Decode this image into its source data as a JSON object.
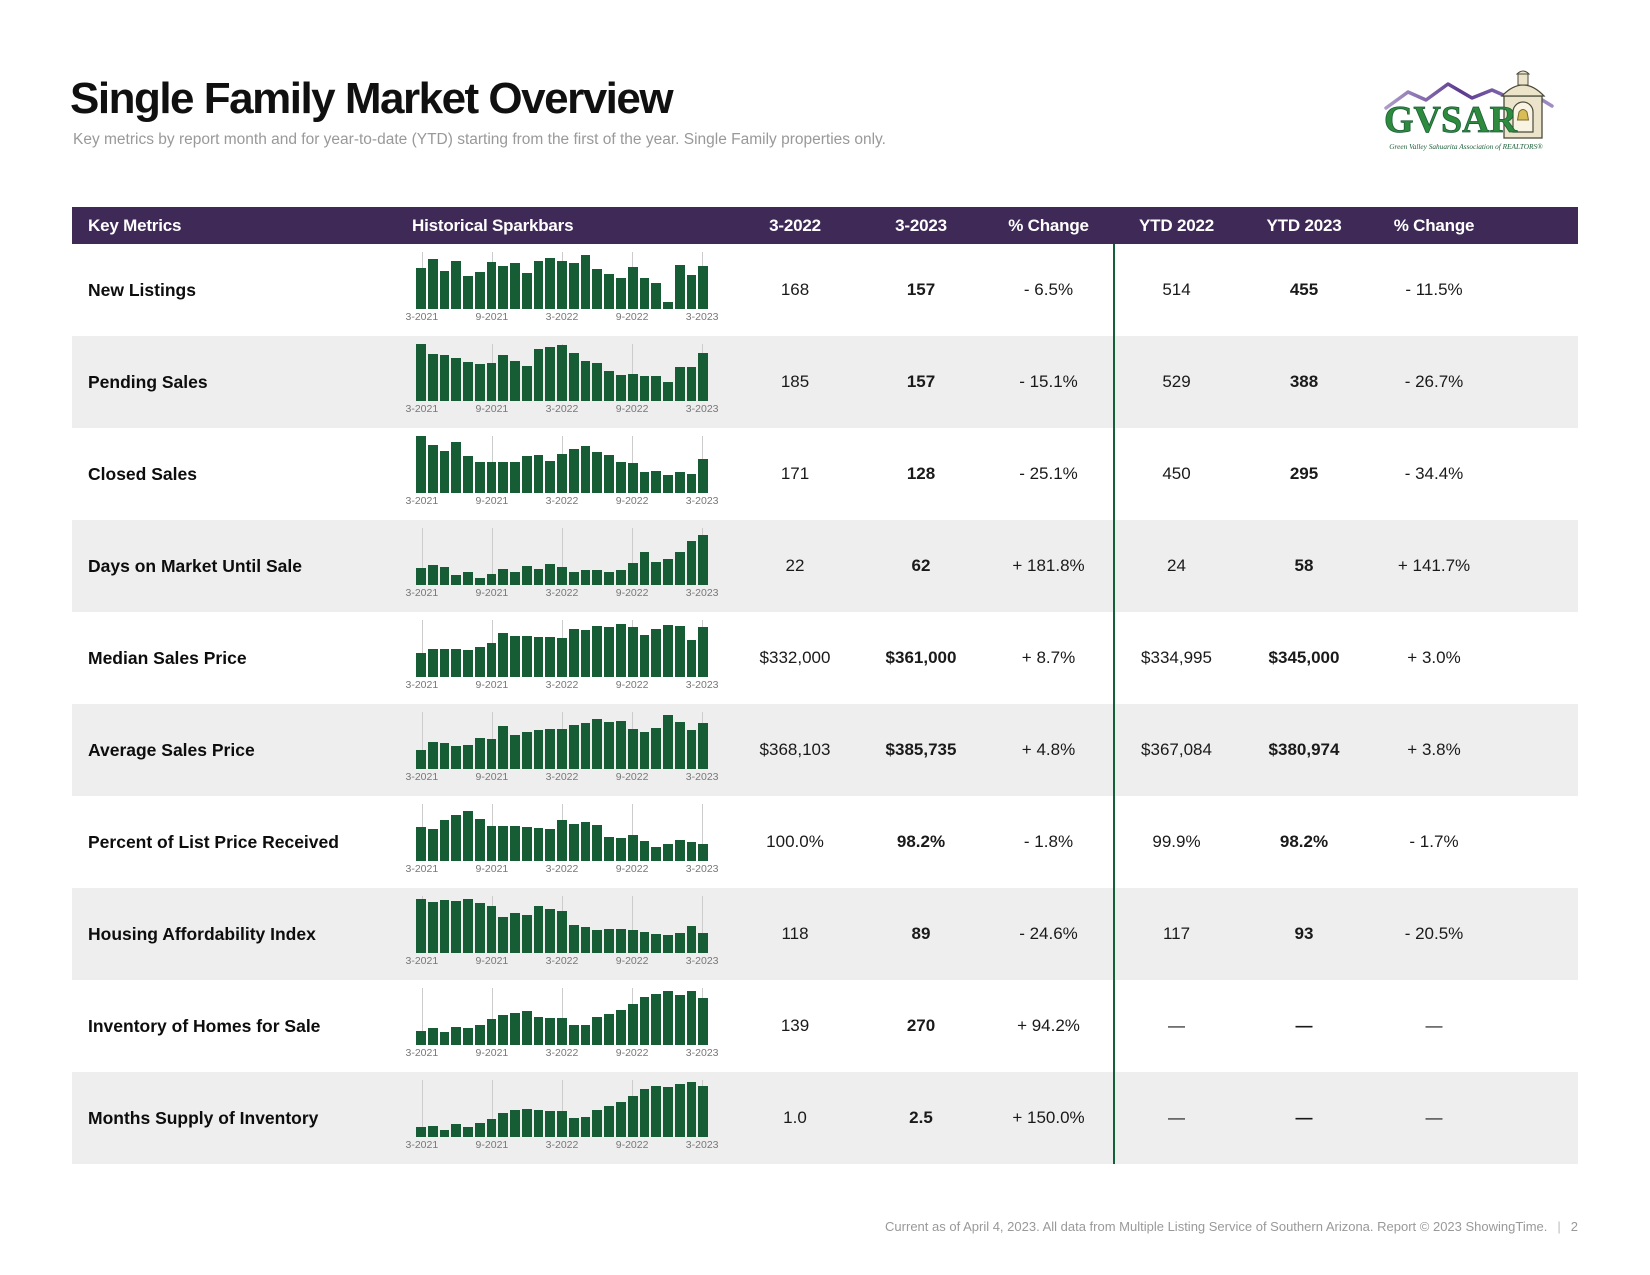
{
  "page": {
    "title": "Single Family Market Overview",
    "subtitle": "Key metrics by report month and for year-to-date (YTD) starting from the first of the year. Single Family properties only.",
    "footer": "Current as of April 4, 2023. All data from Multiple Listing Service of Southern Arizona. Report © 2023 ShowingTime.",
    "footer_separator": "|",
    "page_number": "2"
  },
  "logo": {
    "name": "GVSAR",
    "tagline": "Green Valley Sahuarita Association of REALTORS®",
    "green": "#2e8b3d",
    "purple": "#6b4a9e",
    "tower_fill": "#ece4ca"
  },
  "theme": {
    "header_bg": "#3f2957",
    "bar_green": "#165c35",
    "divider_green": "#15603a",
    "alt_row_bg": "#eeeeee",
    "gridline": "#cccccc",
    "tick": "#777777",
    "muted": "#999999"
  },
  "table": {
    "headers": [
      "Key Metrics",
      "Historical Sparkbars",
      "3-2022",
      "3-2023",
      "% Change",
      "YTD 2022",
      "YTD 2023",
      "% Change"
    ],
    "tick_labels": [
      "3-2021",
      "9-2021",
      "3-2022",
      "9-2022",
      "3-2023"
    ],
    "tick_indices": [
      0,
      6,
      12,
      18,
      24
    ],
    "rows": [
      {
        "label": "New Listings",
        "m2022": "168",
        "m2023": "157",
        "pct": "- 6.5%",
        "ytd2022": "514",
        "ytd2023": "455",
        "ytdpct": "- 11.5%"
      },
      {
        "label": "Pending Sales",
        "m2022": "185",
        "m2023": "157",
        "pct": "- 15.1%",
        "ytd2022": "529",
        "ytd2023": "388",
        "ytdpct": "- 26.7%"
      },
      {
        "label": "Closed Sales",
        "m2022": "171",
        "m2023": "128",
        "pct": "- 25.1%",
        "ytd2022": "450",
        "ytd2023": "295",
        "ytdpct": "- 34.4%"
      },
      {
        "label": "Days on Market Until Sale",
        "m2022": "22",
        "m2023": "62",
        "pct": "+ 181.8%",
        "ytd2022": "24",
        "ytd2023": "58",
        "ytdpct": "+ 141.7%"
      },
      {
        "label": "Median Sales Price",
        "m2022": "$332,000",
        "m2023": "$361,000",
        "pct": "+ 8.7%",
        "ytd2022": "$334,995",
        "ytd2023": "$345,000",
        "ytdpct": "+ 3.0%"
      },
      {
        "label": "Average Sales Price",
        "m2022": "$368,103",
        "m2023": "$385,735",
        "pct": "+ 4.8%",
        "ytd2022": "$367,084",
        "ytd2023": "$380,974",
        "ytdpct": "+ 3.8%"
      },
      {
        "label": "Percent of List Price Received",
        "m2022": "100.0%",
        "m2023": "98.2%",
        "pct": "- 1.8%",
        "ytd2022": "99.9%",
        "ytd2023": "98.2%",
        "ytdpct": "- 1.7%"
      },
      {
        "label": "Housing Affordability Index",
        "m2022": "118",
        "m2023": "89",
        "pct": "- 24.6%",
        "ytd2022": "117",
        "ytd2023": "93",
        "ytdpct": "- 20.5%"
      },
      {
        "label": "Inventory of Homes for Sale",
        "m2022": "139",
        "m2023": "270",
        "pct": "+ 94.2%",
        "ytd2022": "—",
        "ytd2023": "—",
        "ytdpct": "—"
      },
      {
        "label": "Months Supply of Inventory",
        "m2022": "1.0",
        "m2023": "2.5",
        "pct": "+ 150.0%",
        "ytd2022": "—",
        "ytd2023": "—",
        "ytdpct": "—"
      }
    ]
  },
  "chart_data": {
    "type": "bar",
    "title": "Historical Sparkbars (monthly, 3-2021 through 3-2023, 25 bars each)",
    "x_tick_labels": [
      "3-2021",
      "9-2021",
      "3-2022",
      "9-2022",
      "3-2023"
    ],
    "ylabel": "relative bar height, % of sparkbar max (estimated from pixels)",
    "legend_position": "none",
    "grid": "vertical ticks only",
    "series": [
      {
        "name": "New Listings",
        "values": [
          72,
          88,
          67,
          85,
          58,
          65,
          83,
          75,
          80,
          63,
          85,
          90,
          85,
          80,
          95,
          70,
          62,
          55,
          73,
          55,
          45,
          12,
          78,
          60,
          75
        ]
      },
      {
        "name": "Pending Sales",
        "values": [
          100,
          82,
          80,
          76,
          68,
          65,
          66,
          80,
          71,
          62,
          92,
          94,
          98,
          84,
          70,
          66,
          52,
          46,
          48,
          44,
          44,
          33,
          60,
          60,
          85
        ]
      },
      {
        "name": "Closed Sales",
        "values": [
          100,
          85,
          73,
          90,
          65,
          55,
          54,
          55,
          54,
          65,
          66,
          57,
          68,
          77,
          82,
          72,
          66,
          55,
          52,
          37,
          38,
          31,
          36,
          33,
          60
        ]
      },
      {
        "name": "Days on Market Until Sale",
        "values": [
          30,
          35,
          31,
          17,
          23,
          12,
          20,
          28,
          23,
          33,
          28,
          37,
          31,
          23,
          26,
          26,
          23,
          26,
          38,
          58,
          40,
          46,
          58,
          77,
          88
        ]
      },
      {
        "name": "Median Sales Price",
        "values": [
          42,
          50,
          50,
          50,
          47,
          53,
          60,
          78,
          72,
          72,
          70,
          70,
          68,
          85,
          83,
          90,
          88,
          93,
          88,
          73,
          85,
          92,
          90,
          65,
          87
        ]
      },
      {
        "name": "Average Sales Price",
        "values": [
          33,
          48,
          45,
          40,
          42,
          55,
          53,
          75,
          60,
          65,
          68,
          70,
          70,
          78,
          80,
          88,
          82,
          85,
          70,
          65,
          72,
          95,
          83,
          68,
          80
        ]
      },
      {
        "name": "Percent of List Price Received",
        "values": [
          60,
          57,
          72,
          80,
          87,
          73,
          62,
          62,
          62,
          60,
          58,
          57,
          72,
          65,
          68,
          63,
          42,
          40,
          46,
          35,
          25,
          30,
          37,
          33,
          30
        ]
      },
      {
        "name": "Housing Affordability Index",
        "values": [
          95,
          90,
          93,
          92,
          95,
          87,
          82,
          63,
          70,
          66,
          83,
          78,
          73,
          50,
          46,
          40,
          43,
          43,
          40,
          37,
          33,
          31,
          35,
          48,
          35
        ]
      },
      {
        "name": "Inventory of Homes for Sale",
        "values": [
          25,
          30,
          22,
          32,
          30,
          35,
          45,
          52,
          57,
          60,
          50,
          48,
          48,
          35,
          35,
          50,
          55,
          62,
          72,
          85,
          90,
          95,
          88,
          95,
          82
        ]
      },
      {
        "name": "Months Supply of Inventory",
        "values": [
          18,
          20,
          13,
          22,
          18,
          25,
          32,
          42,
          48,
          50,
          48,
          45,
          45,
          33,
          35,
          48,
          55,
          62,
          72,
          85,
          90,
          87,
          93,
          97,
          90
        ]
      }
    ]
  }
}
